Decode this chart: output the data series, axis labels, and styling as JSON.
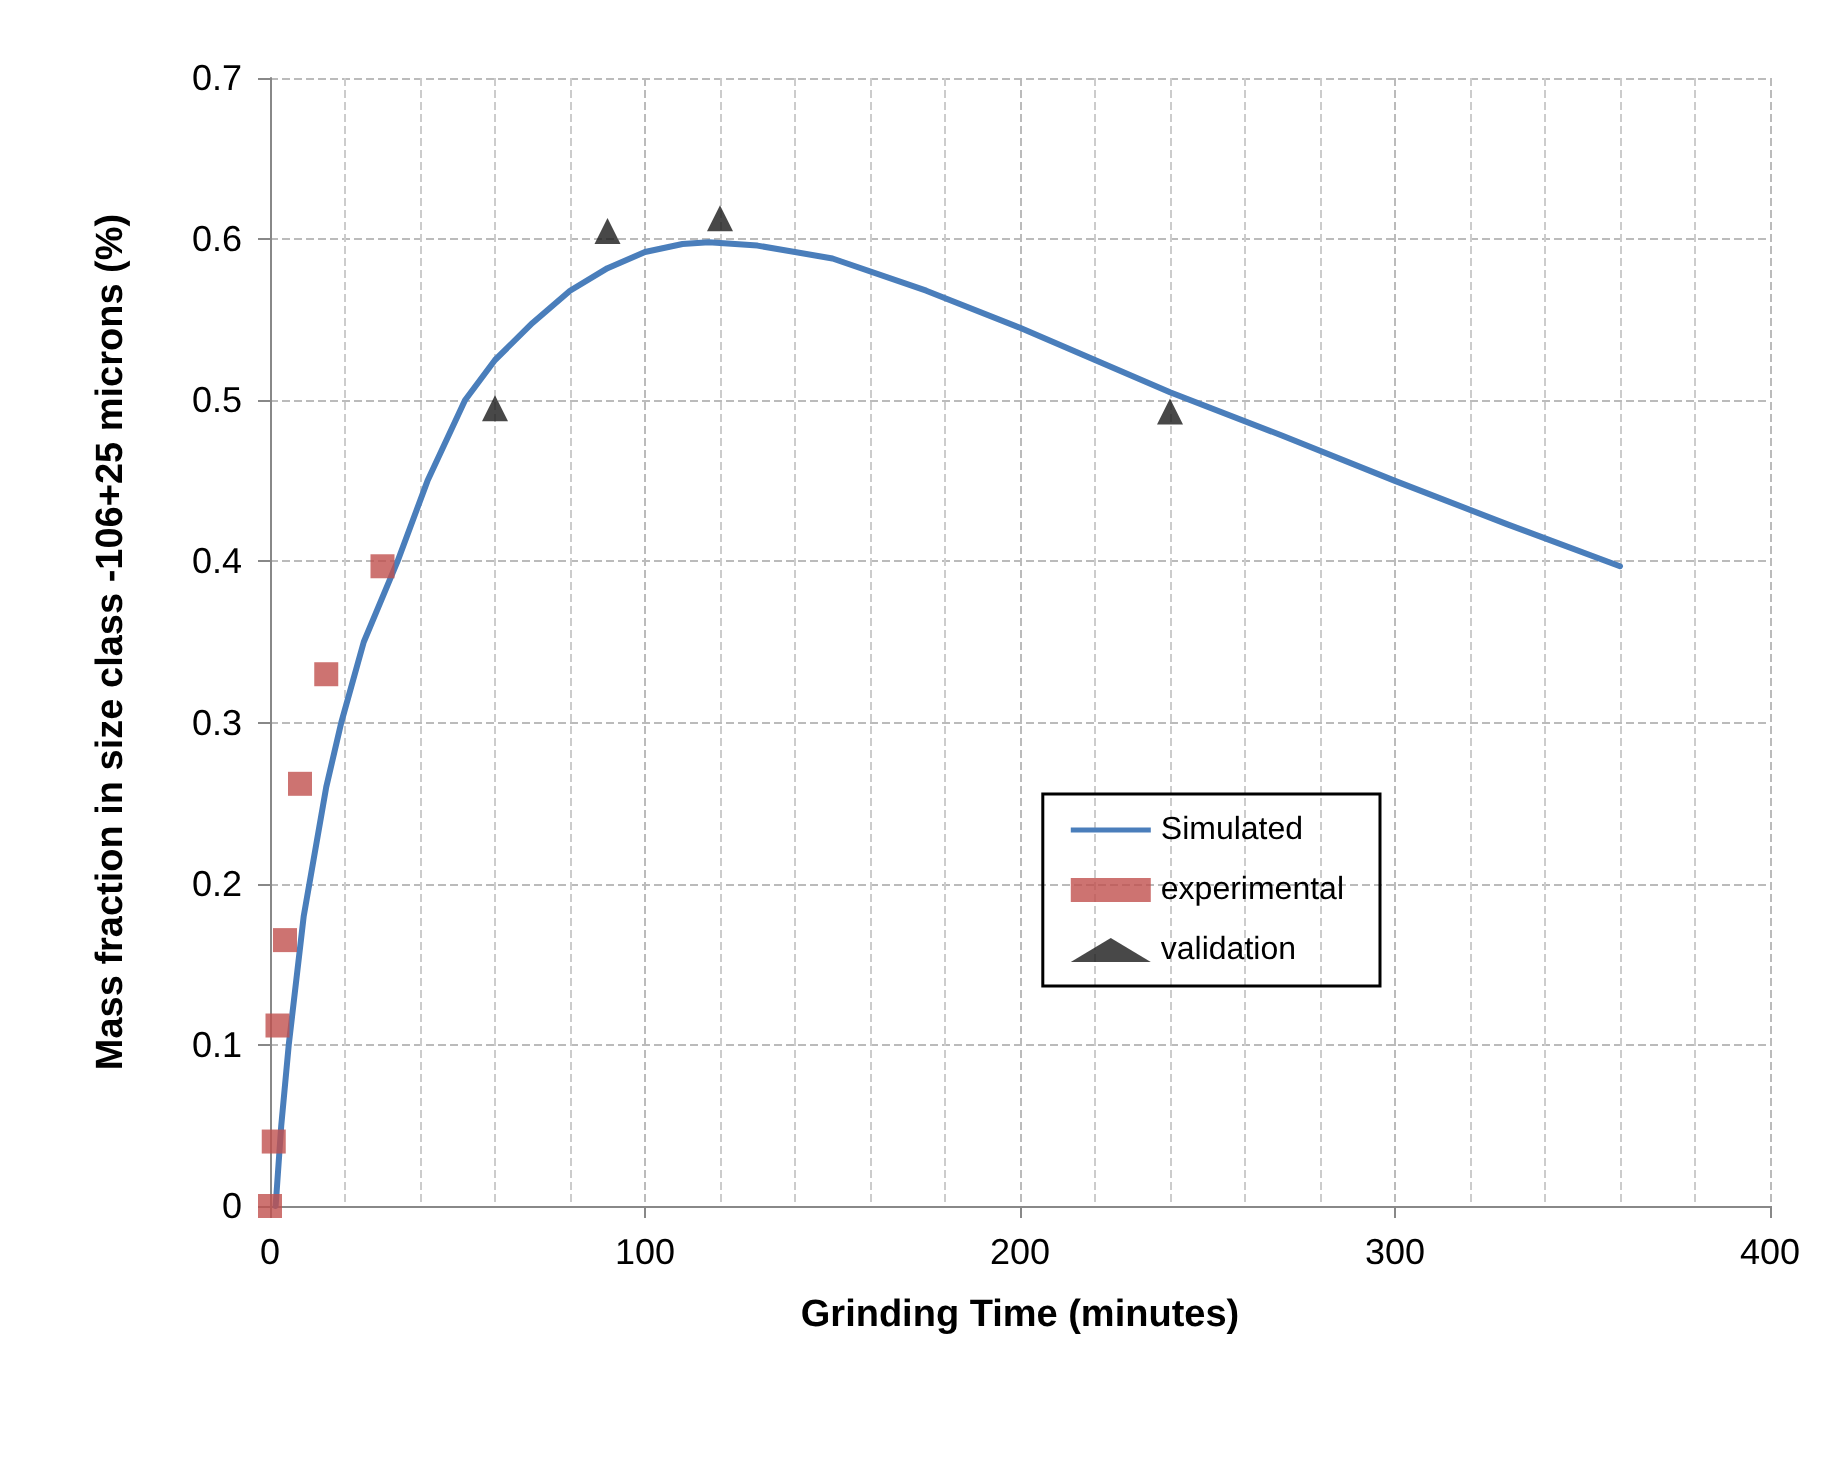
{
  "chart_data": {
    "type": "scatter",
    "xlabel": "Grinding Time (minutes)",
    "ylabel": "Mass fraction in size class -106+25 microns (%)",
    "xlim": [
      0,
      400
    ],
    "xticks": [
      0,
      100,
      200,
      300,
      400
    ],
    "ylim": [
      0,
      0.7
    ],
    "yticks": [
      0,
      0.1,
      0.2,
      0.3,
      0.4,
      0.5,
      0.6,
      0.7
    ],
    "grid": true,
    "legend": "right",
    "series": [
      {
        "name": "Simulated",
        "type": "line",
        "marker": "none",
        "line_style": "solid",
        "color": "#4a7ebb",
        "x": [
          1.5,
          3,
          5,
          7,
          9,
          12,
          15,
          19,
          25,
          34,
          42,
          52,
          60,
          70,
          80,
          90,
          100,
          110,
          117,
          130,
          150,
          175,
          200,
          220,
          240,
          270,
          300,
          330,
          360
        ],
        "values": [
          0,
          0.05,
          0.1,
          0.14,
          0.18,
          0.22,
          0.26,
          0.3,
          0.35,
          0.4,
          0.45,
          0.5,
          0.525,
          0.548,
          0.568,
          0.582,
          0.592,
          0.597,
          0.598,
          0.596,
          0.588,
          0.568,
          0.545,
          0.525,
          0.505,
          0.478,
          0.45,
          0.423,
          0.397
        ]
      },
      {
        "name": "experimental",
        "marker": "square",
        "color": "#c0504d",
        "x": [
          0,
          1,
          2,
          4,
          8,
          15,
          30
        ],
        "values": [
          0,
          0.04,
          0.112,
          0.165,
          0.262,
          0.33,
          0.397
        ]
      },
      {
        "name": "validation",
        "marker": "triangle",
        "color": "#1a1a1a",
        "x": [
          60,
          90,
          120,
          240
        ],
        "values": [
          0.495,
          0.605,
          0.613,
          0.493
        ]
      }
    ]
  }
}
